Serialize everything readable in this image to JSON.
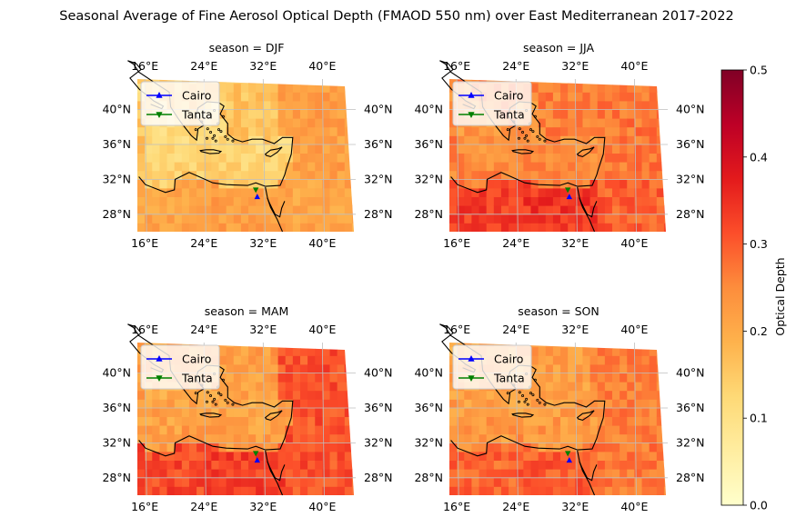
{
  "chart_data": {
    "type": "heatmap",
    "title": "Seasonal Average of Fine Aerosol Optical Depth (FMAOD 550 nm) over East Mediterranean 2017-2022",
    "colorbar": {
      "label": "Optical Depth",
      "range": [
        0,
        0.5
      ],
      "ticks": [
        "0.0",
        "0.1",
        "0.2",
        "0.3",
        "0.4",
        "0.5"
      ],
      "colormap": "YlOrRd",
      "colors": [
        "#ffffcc",
        "#ffeda0",
        "#fed976",
        "#feb24c",
        "#fd8d3c",
        "#fc4e2a",
        "#e31a1c",
        "#bd0026",
        "#800026"
      ]
    },
    "lon_ticks": [
      "16°E",
      "24°E",
      "32°E",
      "40°E"
    ],
    "lat_ticks": [
      "40°N",
      "36°N",
      "32°N",
      "28°N"
    ],
    "legend": {
      "placement": "top-left",
      "entries": [
        {
          "name": "Cairo",
          "color": "#0000ff",
          "marker": "triangle-up"
        },
        {
          "name": "Tanta",
          "color": "#008000",
          "marker": "triangle-down"
        }
      ]
    },
    "stations": [
      {
        "name": "Cairo",
        "lon": 31.2,
        "lat": 30.0
      },
      {
        "name": "Tanta",
        "lon": 31.0,
        "lat": 30.8
      }
    ],
    "panels": [
      {
        "title": "season = DJF",
        "sea": 0.12,
        "land_north": 0.16,
        "egypt": 0.22,
        "east": 0.22,
        "noise": 0.03
      },
      {
        "title": "season = JJA",
        "sea": 0.24,
        "land_north": 0.26,
        "egypt": 0.34,
        "east": 0.27,
        "noise": 0.035
      },
      {
        "title": "season = MAM",
        "sea": 0.21,
        "land_north": 0.22,
        "egypt": 0.33,
        "east": 0.31,
        "noise": 0.035
      },
      {
        "title": "season = SON",
        "sea": 0.22,
        "land_north": 0.22,
        "egypt": 0.3,
        "east": 0.26,
        "noise": 0.035
      }
    ]
  }
}
